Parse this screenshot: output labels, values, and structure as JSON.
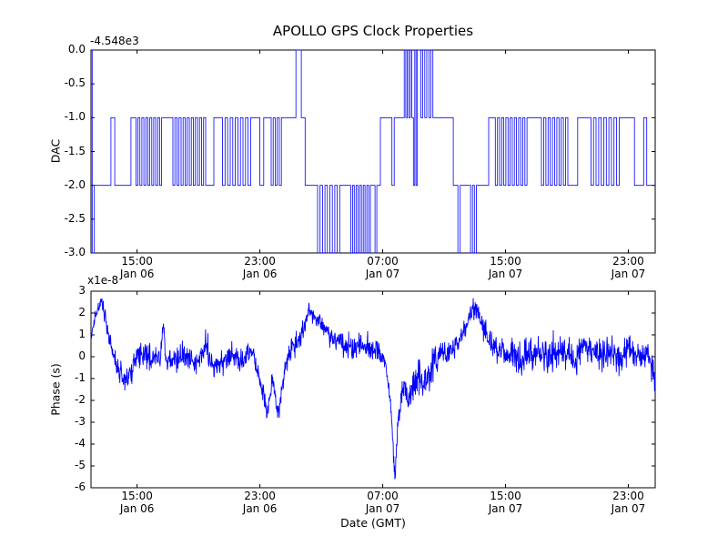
{
  "figure": {
    "title": "APOLLO GPS Clock Properties",
    "xlabel": "Date (GMT)",
    "background": "#ffffff",
    "line_color": "#0000ff",
    "axis_color": "#000000"
  },
  "x_axis": {
    "duration_hours": 36.75,
    "tick_hours": [
      3,
      11,
      19,
      27,
      35
    ],
    "tick_labels": [
      {
        "time": "15:00",
        "date": "Jan 06"
      },
      {
        "time": "23:00",
        "date": "Jan 06"
      },
      {
        "time": "07:00",
        "date": "Jan 07"
      },
      {
        "time": "15:00",
        "date": "Jan 07"
      },
      {
        "time": "23:00",
        "date": "Jan 07"
      }
    ]
  },
  "chart_data": [
    {
      "type": "line",
      "name": "dac",
      "title": "APOLLO GPS Clock Properties",
      "ylabel": "DAC",
      "offset_text": "-4.548e3",
      "ylim": [
        -3,
        0
      ],
      "yticks": [
        0,
        -0.5,
        -1,
        -1.5,
        -2,
        -2.5,
        -3
      ],
      "ytick_labels": [
        "0.0",
        "-0.5",
        "-1.0",
        "-1.5",
        "-2.0",
        "-2.5",
        "-3.0"
      ],
      "series_color": "#0000ff",
      "steps": [
        [
          0,
          0
        ],
        [
          0.08,
          -3
        ],
        [
          0.22,
          -2
        ],
        [
          1.3,
          -1
        ],
        [
          1.55,
          -2
        ],
        [
          2.6,
          -1
        ],
        [
          4.6,
          -1
        ],
        [
          7.6,
          -2
        ],
        [
          8.0,
          -1
        ],
        [
          10.4,
          -1
        ],
        [
          11.0,
          -2
        ],
        [
          11.25,
          -1
        ],
        [
          12.4,
          -1
        ],
        [
          13.35,
          0
        ],
        [
          13.7,
          -1
        ],
        [
          13.95,
          -2
        ],
        [
          16.2,
          -2
        ],
        [
          18.2,
          -2
        ],
        [
          18.5,
          -3
        ],
        [
          18.62,
          -2
        ],
        [
          18.85,
          -1
        ],
        [
          19.6,
          -2
        ],
        [
          19.75,
          -1
        ],
        [
          22.4,
          -1
        ],
        [
          23.6,
          -2
        ],
        [
          23.9,
          -3
        ],
        [
          24.05,
          -2
        ],
        [
          25.1,
          -2
        ],
        [
          25.9,
          -1
        ],
        [
          28.4,
          -1
        ],
        [
          31.2,
          -2
        ],
        [
          31.7,
          -1
        ],
        [
          34.4,
          -1
        ],
        [
          35.4,
          -2
        ],
        [
          36.0,
          -1
        ],
        [
          36.2,
          -2
        ],
        [
          36.75,
          -2
        ]
      ],
      "toggle_bursts": [
        [
          2.8,
          4.6,
          -1,
          -2,
          14
        ],
        [
          5.2,
          7.6,
          -1,
          -2,
          18
        ],
        [
          8.4,
          10.4,
          -1,
          -2,
          12
        ],
        [
          11.6,
          12.4,
          -1,
          -2,
          6
        ],
        [
          14.6,
          16.2,
          -2,
          -3,
          10
        ],
        [
          16.8,
          18.2,
          -2,
          -3,
          12
        ],
        [
          20.4,
          21.0,
          0,
          -1,
          6
        ],
        [
          21.0,
          21.35,
          -2,
          0,
          4
        ],
        [
          21.35,
          22.4,
          0,
          -1,
          8
        ],
        [
          24.6,
          25.1,
          -2,
          -3,
          4
        ],
        [
          26.2,
          28.4,
          -1,
          -2,
          16
        ],
        [
          29.2,
          31.2,
          -1,
          -2,
          14
        ],
        [
          32.4,
          34.4,
          -1,
          -2,
          12
        ]
      ]
    },
    {
      "type": "line",
      "name": "phase",
      "ylabel": "Phase (s)",
      "offset_text": "x1e-8",
      "units": "1e-8 s",
      "ylim": [
        -6,
        3
      ],
      "yticks": [
        3,
        2,
        1,
        0,
        -1,
        -2,
        -3,
        -4,
        -5,
        -6
      ],
      "ytick_labels": [
        "3",
        "2",
        "1",
        "0",
        "-1",
        "-2",
        "-3",
        "-4",
        "-5",
        "-6"
      ],
      "series_color": "#0000ff",
      "mean_keypoints": [
        [
          0,
          0.8
        ],
        [
          0.3,
          2.0
        ],
        [
          0.7,
          2.6
        ],
        [
          1.0,
          1.5
        ],
        [
          1.4,
          0.2
        ],
        [
          1.8,
          -0.6
        ],
        [
          2.3,
          -1.2
        ],
        [
          2.8,
          -0.2
        ],
        [
          3.5,
          0.1
        ],
        [
          4.5,
          -0.1
        ],
        [
          4.7,
          1.6
        ],
        [
          4.9,
          -0.2
        ],
        [
          6,
          0
        ],
        [
          7,
          -0.3
        ],
        [
          7.5,
          0.6
        ],
        [
          8,
          -0.6
        ],
        [
          9,
          0.1
        ],
        [
          10,
          -0.2
        ],
        [
          10.5,
          0.4
        ],
        [
          11.0,
          -1.2
        ],
        [
          11.5,
          -2.5
        ],
        [
          11.8,
          -1.0
        ],
        [
          12.2,
          -2.7
        ],
        [
          12.6,
          -0.5
        ],
        [
          13.0,
          0.3
        ],
        [
          13.6,
          0.6
        ],
        [
          14.2,
          2.3
        ],
        [
          14.5,
          1.8
        ],
        [
          15.0,
          1.5
        ],
        [
          15.5,
          1.0
        ],
        [
          16.0,
          0.8
        ],
        [
          17.0,
          0.4
        ],
        [
          18.0,
          0.5
        ],
        [
          18.8,
          0.2
        ],
        [
          19.2,
          -0.4
        ],
        [
          19.5,
          -2.0
        ],
        [
          19.8,
          -5.6
        ],
        [
          20.0,
          -2.8
        ],
        [
          20.3,
          -1.5
        ],
        [
          20.8,
          -1.8
        ],
        [
          21.3,
          -0.8
        ],
        [
          21.8,
          -1.2
        ],
        [
          22.3,
          -0.3
        ],
        [
          22.8,
          0.2
        ],
        [
          23.4,
          0.3
        ],
        [
          24.0,
          0.8
        ],
        [
          24.5,
          1.5
        ],
        [
          25.0,
          2.35
        ],
        [
          25.3,
          1.7
        ],
        [
          25.8,
          1.0
        ],
        [
          26.3,
          0.4
        ],
        [
          27.0,
          0.1
        ],
        [
          28.0,
          -0.1
        ],
        [
          29.0,
          0.2
        ],
        [
          30.0,
          0.0
        ],
        [
          31.0,
          0.3
        ],
        [
          31.5,
          -0.3
        ],
        [
          32.0,
          0.6
        ],
        [
          33.0,
          0.1
        ],
        [
          34.0,
          0.4
        ],
        [
          34.5,
          -0.2
        ],
        [
          35.0,
          0.5
        ],
        [
          35.5,
          -0.1
        ],
        [
          36.3,
          0.3
        ],
        [
          36.75,
          -1.2
        ]
      ],
      "noise_sigma_keypoints": [
        [
          0,
          0.08
        ],
        [
          0.5,
          0.12
        ],
        [
          1.5,
          0.25
        ],
        [
          3,
          0.3
        ],
        [
          10,
          0.3
        ],
        [
          11,
          0.25
        ],
        [
          12,
          0.2
        ],
        [
          13,
          0.28
        ],
        [
          14.4,
          0.2
        ],
        [
          16,
          0.3
        ],
        [
          18.5,
          0.25
        ],
        [
          19.6,
          0.15
        ],
        [
          20.2,
          0.4
        ],
        [
          21,
          0.45
        ],
        [
          22,
          0.4
        ],
        [
          23,
          0.3
        ],
        [
          24,
          0.2
        ],
        [
          25.4,
          0.25
        ],
        [
          26.5,
          0.35
        ],
        [
          36.75,
          0.35
        ]
      ],
      "seed": 20240106,
      "n_points": 1700
    }
  ]
}
